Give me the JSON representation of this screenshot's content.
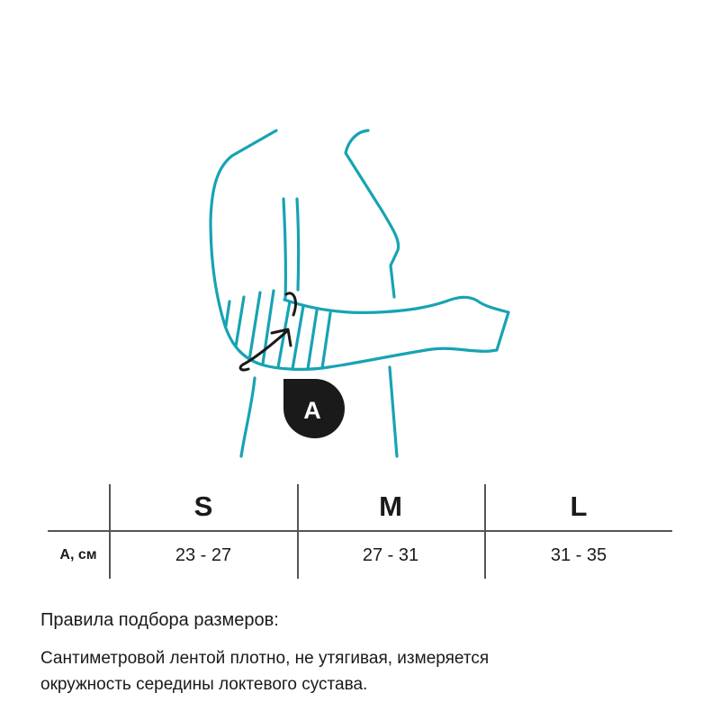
{
  "colors": {
    "outline": "#17a3b3",
    "marker": "#1a1a1a"
  },
  "illustration": {
    "badge_label": "A"
  },
  "table": {
    "row_label": "А, см",
    "columns": [
      {
        "size": "S",
        "range": "23 - 27"
      },
      {
        "size": "M",
        "range": "27 - 31"
      },
      {
        "size": "L",
        "range": "31 - 35"
      }
    ]
  },
  "rules": {
    "title": "Правила подбора размеров:",
    "text_line1": "Сантиметровой лентой плотно, не утягивая, измеряется",
    "text_line2": "окружность середины локтевого сустава."
  }
}
